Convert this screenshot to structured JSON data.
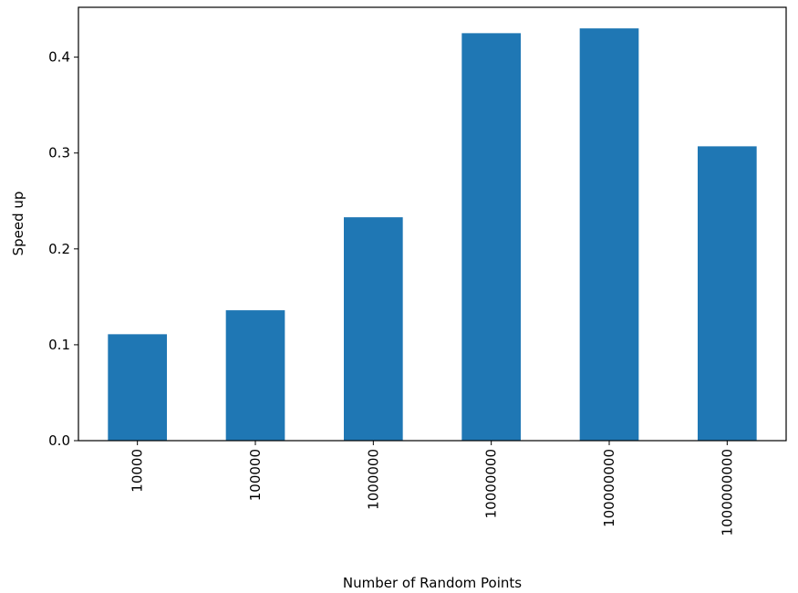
{
  "chart_data": {
    "type": "bar",
    "title": "",
    "xlabel": "Number of Random Points",
    "ylabel": "Speed up",
    "categories": [
      "10000",
      "100000",
      "1000000",
      "10000000",
      "100000000",
      "1000000000"
    ],
    "values": [
      0.111,
      0.136,
      0.233,
      0.425,
      0.43,
      0.307
    ],
    "ylim": [
      0,
      0.452
    ],
    "yticks": [
      0.0,
      0.1,
      0.2,
      0.3,
      0.4
    ],
    "ytick_labels": [
      "0.0",
      "0.1",
      "0.2",
      "0.3",
      "0.4"
    ],
    "xtick_rotation": "vertical",
    "grid": false,
    "legend": "none",
    "bar_color": "#1f77b4"
  }
}
